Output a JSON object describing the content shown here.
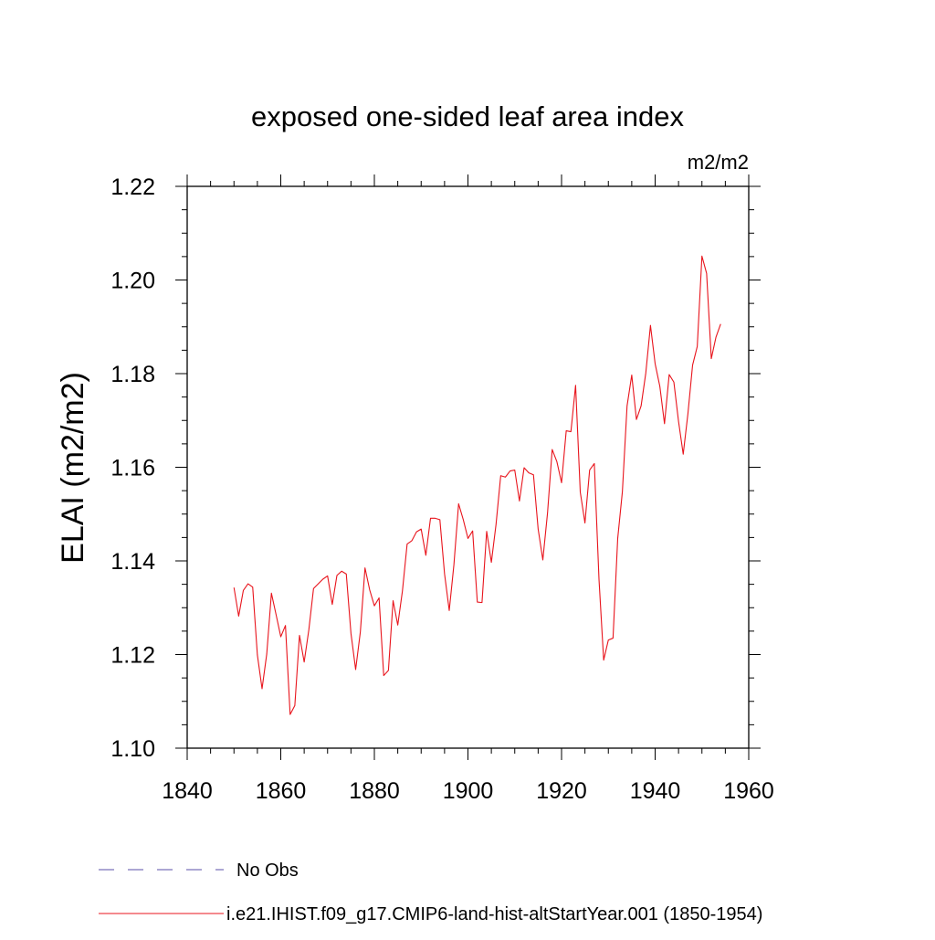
{
  "chart_data": {
    "type": "line",
    "title": "exposed one-sided leaf area index",
    "units_label": "m2/m2",
    "ylabel": "ELAI  (m2/m2)",
    "xlabel": "",
    "xlim": [
      1840,
      1960
    ],
    "ylim": [
      1.1,
      1.22
    ],
    "x_ticks": [
      1840,
      1860,
      1880,
      1900,
      1920,
      1940,
      1960
    ],
    "x_tick_labels": [
      "1840",
      "1860",
      "1880",
      "1900",
      "1920",
      "1940",
      "1960"
    ],
    "y_ticks": [
      1.1,
      1.12,
      1.14,
      1.16,
      1.18,
      1.2,
      1.22
    ],
    "y_tick_labels": [
      "1.10",
      "1.12",
      "1.14",
      "1.16",
      "1.18",
      "1.20",
      "1.22"
    ],
    "grid": false,
    "legend_position": "bottom",
    "series": [
      {
        "name": "i.e21.IHIST.f09_g17.CMIP6-land-hist-altStartYear.001 (1850-1954)",
        "color": "#e8141c",
        "line_style": "solid",
        "x": [
          1850,
          1851,
          1852,
          1853,
          1854,
          1855,
          1856,
          1857,
          1858,
          1859,
          1860,
          1861,
          1862,
          1863,
          1864,
          1865,
          1866,
          1867,
          1868,
          1869,
          1870,
          1871,
          1872,
          1873,
          1874,
          1875,
          1876,
          1877,
          1878,
          1879,
          1880,
          1881,
          1882,
          1883,
          1884,
          1885,
          1886,
          1887,
          1888,
          1889,
          1890,
          1891,
          1892,
          1893,
          1894,
          1895,
          1896,
          1897,
          1898,
          1899,
          1900,
          1901,
          1902,
          1903,
          1904,
          1905,
          1906,
          1907,
          1908,
          1909,
          1910,
          1911,
          1912,
          1913,
          1914,
          1915,
          1916,
          1917,
          1918,
          1919,
          1920,
          1921,
          1922,
          1923,
          1924,
          1925,
          1926,
          1927,
          1928,
          1929,
          1930,
          1931,
          1932,
          1933,
          1934,
          1935,
          1936,
          1937,
          1938,
          1939,
          1940,
          1941,
          1942,
          1943,
          1944,
          1945,
          1946,
          1947,
          1948,
          1949,
          1950,
          1951,
          1952,
          1953,
          1954
        ],
        "values": [
          1.1343,
          1.1282,
          1.1337,
          1.1351,
          1.1344,
          1.1199,
          1.1127,
          1.1201,
          1.1331,
          1.1285,
          1.1238,
          1.1262,
          1.1072,
          1.1091,
          1.1241,
          1.1184,
          1.1253,
          1.1341,
          1.1351,
          1.1361,
          1.1368,
          1.1307,
          1.1369,
          1.1378,
          1.1372,
          1.1245,
          1.1168,
          1.1248,
          1.1385,
          1.1338,
          1.1304,
          1.1321,
          1.1155,
          1.1166,
          1.1315,
          1.1263,
          1.1336,
          1.1436,
          1.1443,
          1.1462,
          1.1468,
          1.1412,
          1.1491,
          1.1491,
          1.1488,
          1.1372,
          1.1294,
          1.1392,
          1.1522,
          1.1488,
          1.1448,
          1.1464,
          1.1312,
          1.1311,
          1.1463,
          1.1397,
          1.1478,
          1.1582,
          1.1579,
          1.1592,
          1.1594,
          1.1528,
          1.1599,
          1.1588,
          1.1584,
          1.1468,
          1.1402,
          1.1502,
          1.1638,
          1.1612,
          1.1567,
          1.1678,
          1.1676,
          1.1775,
          1.1547,
          1.1481,
          1.1594,
          1.1608,
          1.1361,
          1.1188,
          1.1231,
          1.1235,
          1.1448,
          1.1548,
          1.1731,
          1.1797,
          1.1702,
          1.1731,
          1.1801,
          1.1903,
          1.1821,
          1.1773,
          1.1693,
          1.1798,
          1.1782,
          1.1698,
          1.1628,
          1.1714,
          1.1818,
          1.1858,
          1.2051,
          1.2014,
          1.1832,
          1.1878,
          1.1906
        ]
      }
    ]
  },
  "legend": {
    "items": [
      {
        "label": "No Obs",
        "style": "dashed",
        "color": "#5a4fa8"
      },
      {
        "label": "i.e21.IHIST.f09_g17.CMIP6-land-hist-altStartYear.001 (1850-1954)",
        "style": "solid",
        "color": "#e8141c"
      }
    ]
  }
}
